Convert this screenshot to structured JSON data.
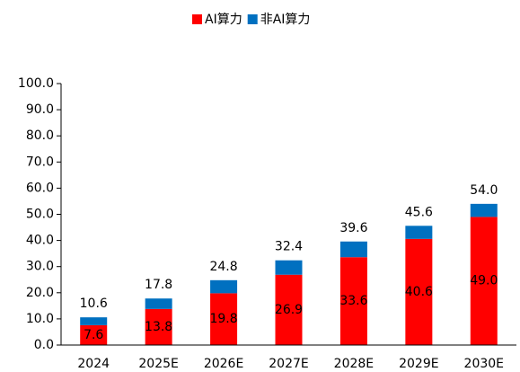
{
  "chart_data": {
    "type": "stacked-bar",
    "categories": [
      "2024",
      "2025E",
      "2026E",
      "2027E",
      "2028E",
      "2029E",
      "2030E"
    ],
    "series": [
      {
        "name": "AI算力",
        "color": "#ff0000",
        "values": [
          7.6,
          13.8,
          19.8,
          26.9,
          33.6,
          40.6,
          49.0
        ],
        "value_labels": [
          "7.6",
          "13.8",
          "19.8",
          "26.9",
          "33.6",
          "40.6",
          "49.0"
        ]
      },
      {
        "name": "非AI算力",
        "color": "#0070c0",
        "values": [
          3.0,
          4.0,
          5.0,
          5.5,
          6.0,
          5.0,
          5.0
        ]
      }
    ],
    "totals": [
      10.6,
      17.8,
      24.8,
      32.4,
      39.6,
      45.6,
      54.0
    ],
    "total_labels": [
      "10.6",
      "17.8",
      "24.8",
      "32.4",
      "39.6",
      "45.6",
      "54.0"
    ],
    "ylim": [
      0,
      100
    ],
    "yticks": [
      {
        "value": 0,
        "label": "0.0"
      },
      {
        "value": 10,
        "label": "10.0"
      },
      {
        "value": 20,
        "label": "20.0"
      },
      {
        "value": 30,
        "label": "30.0"
      },
      {
        "value": 40,
        "label": "40.0"
      },
      {
        "value": 50,
        "label": "50.0"
      },
      {
        "value": 60,
        "label": "60.0"
      },
      {
        "value": 70,
        "label": "70.0"
      },
      {
        "value": 80,
        "label": "80.0"
      },
      {
        "value": 90,
        "label": "90.0"
      },
      {
        "value": 100,
        "label": "100.0"
      }
    ],
    "legend": "top"
  }
}
